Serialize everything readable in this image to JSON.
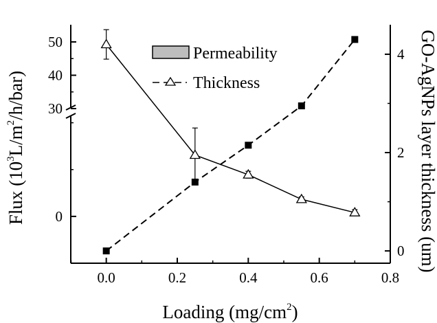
{
  "chart_data": {
    "type": "line",
    "title": "",
    "x_axis": {
      "label_parts": [
        "Loading (mg/cm",
        "2",
        ")"
      ],
      "range": [
        -0.1,
        0.8
      ],
      "ticks": [
        {
          "value": 0.0,
          "label": "0.0"
        },
        {
          "value": 0.2,
          "label": "0.2"
        },
        {
          "value": 0.4,
          "label": "0.4"
        },
        {
          "value": 0.6,
          "label": "0.6"
        },
        {
          "value": 0.8,
          "label": "0.8"
        }
      ]
    },
    "y_left_axis": {
      "label_parts": [
        "Flux (10",
        "3",
        "L/m",
        "2",
        "/h/bar)"
      ],
      "broken": true,
      "lower_segment_range": [
        -1,
        2.2
      ],
      "upper_segment_range": [
        30,
        50
      ],
      "ticks": [
        {
          "value": 0,
          "label": "0"
        },
        {
          "value": 30,
          "label": "30"
        },
        {
          "value": 40,
          "label": "40"
        },
        {
          "value": 50,
          "label": "50"
        }
      ]
    },
    "y_right_axis": {
      "label": "GO-AgNPs layer thickness (um)",
      "range": [
        -0.25,
        4.6
      ],
      "ticks": [
        {
          "value": 0,
          "label": "0"
        },
        {
          "value": 2,
          "label": "2"
        },
        {
          "value": 4,
          "label": "4"
        }
      ]
    },
    "legend": {
      "placement": "top-center",
      "entries": [
        {
          "label": "Permeability",
          "marker": "filled-box"
        },
        {
          "label": "Thickness",
          "marker": "triangle-dash"
        }
      ]
    },
    "series": [
      {
        "name": "Permeability",
        "axis": "right",
        "marker": "filled-square",
        "line": "dashed",
        "x": [
          0.0,
          0.25,
          0.4,
          0.55,
          0.7
        ],
        "y": [
          0.0,
          1.4,
          2.15,
          2.95,
          4.3
        ]
      },
      {
        "name": "Thickness",
        "axis": "right",
        "marker": "open-triangle",
        "line": "solid",
        "x": [
          0.0,
          0.25,
          0.4,
          0.55,
          0.7
        ],
        "y": [
          4.2,
          1.95,
          1.55,
          1.05,
          0.78
        ],
        "error": [
          0.3,
          0.55,
          0.07,
          0.05,
          0.06
        ]
      }
    ]
  }
}
